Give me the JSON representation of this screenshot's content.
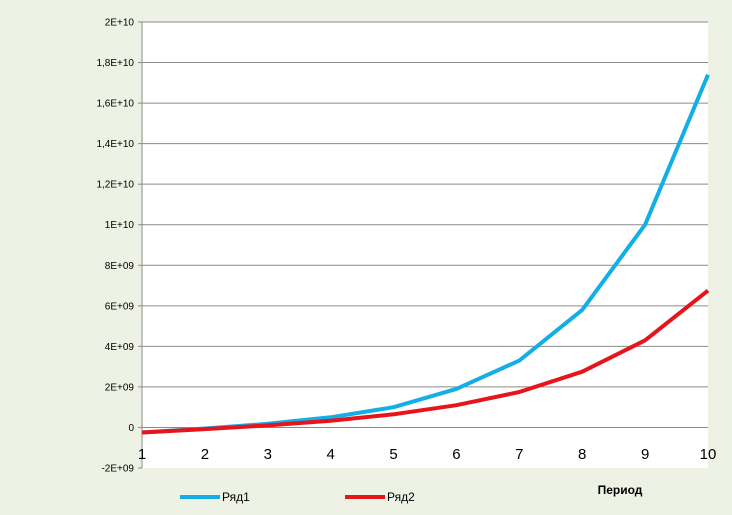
{
  "chart_data": {
    "type": "line",
    "title": "",
    "xlabel": "Период",
    "ylabel": "",
    "x": [
      1,
      2,
      3,
      4,
      5,
      6,
      7,
      8,
      9,
      10
    ],
    "x_tick_labels": [
      "1",
      "2",
      "3",
      "4",
      "5",
      "6",
      "7",
      "8",
      "9",
      "10"
    ],
    "ylim": [
      -2000000000,
      20000000000
    ],
    "y_ticks": [
      -2000000000,
      0,
      2000000000,
      4000000000,
      6000000000,
      8000000000,
      10000000000,
      12000000000,
      14000000000,
      16000000000,
      18000000000,
      20000000000
    ],
    "y_tick_labels": [
      "-2E+09",
      "0",
      "2E+09",
      "4E+09",
      "6E+09",
      "8E+09",
      "1E+10",
      "1,2E+10",
      "1,4E+10",
      "1,6E+10",
      "1,8E+10",
      "2E+10"
    ],
    "grid": true,
    "legend_position": "bottom",
    "series": [
      {
        "name": "Ряд1",
        "color": "#14aee6",
        "values": [
          -250000000,
          -50000000,
          180000000,
          500000000,
          1000000000,
          1900000000,
          3300000000,
          5800000000,
          10000000000,
          17400000000
        ]
      },
      {
        "name": "Ряд2",
        "color": "#e8141c",
        "values": [
          -250000000,
          -80000000,
          100000000,
          330000000,
          650000000,
          1100000000,
          1750000000,
          2750000000,
          4300000000,
          6750000000
        ]
      }
    ]
  }
}
